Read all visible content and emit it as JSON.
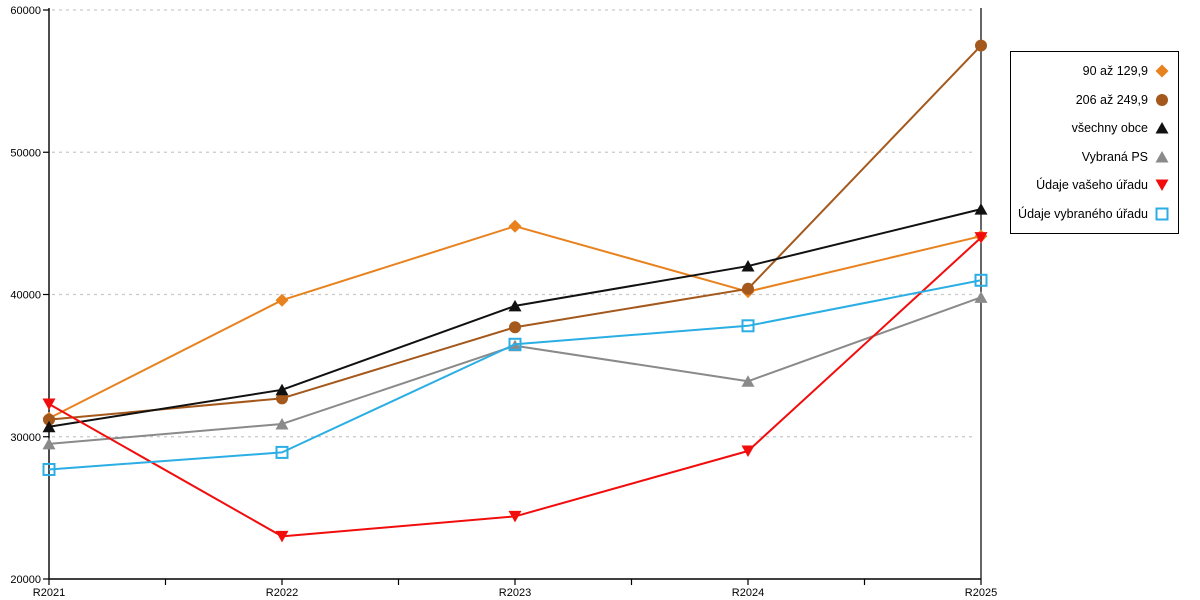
{
  "chart_data": {
    "type": "line",
    "title": "",
    "xlabel": "",
    "ylabel": "",
    "categories": [
      "R2021",
      "R2022",
      "R2023",
      "R2024",
      "R2025"
    ],
    "series": [
      {
        "name": "90 až 129,9",
        "marker": "diamond",
        "color": "#E8821F",
        "values": [
          31300,
          39600,
          44800,
          40200,
          44100
        ]
      },
      {
        "name": "206 až 249,9",
        "marker": "circle",
        "color": "#A4581C",
        "values": [
          31200,
          32700,
          37700,
          40400,
          57500
        ]
      },
      {
        "name": "všechny obce",
        "marker": "triangle-up",
        "color": "#111111",
        "values": [
          30700,
          33300,
          39200,
          42000,
          46000
        ]
      },
      {
        "name": "Vybraná PS",
        "marker": "triangle-up",
        "color": "#8A8A8A",
        "values": [
          29500,
          30900,
          36400,
          33900,
          39800
        ]
      },
      {
        "name": "Údaje vašeho úřadu",
        "marker": "triangle-down",
        "color": "#F20D0D",
        "values": [
          32300,
          23000,
          24400,
          29000,
          44000
        ]
      },
      {
        "name": "Údaje vybraného úřadu",
        "marker": "square-open",
        "color": "#2BAEE4",
        "values": [
          27700,
          28900,
          36500,
          37800,
          41000
        ]
      }
    ],
    "ylim": [
      20000,
      60000
    ],
    "yticks": [
      20000,
      30000,
      40000,
      50000,
      60000
    ],
    "gridlines": [
      30000,
      40000,
      50000,
      60000
    ],
    "grid": "horizontal-dashed",
    "legend_position": "right"
  },
  "colors": {
    "grid": "#C9C9C9",
    "axis": "#000000",
    "background": "#FFFFFF",
    "legend_border": "#000000"
  }
}
